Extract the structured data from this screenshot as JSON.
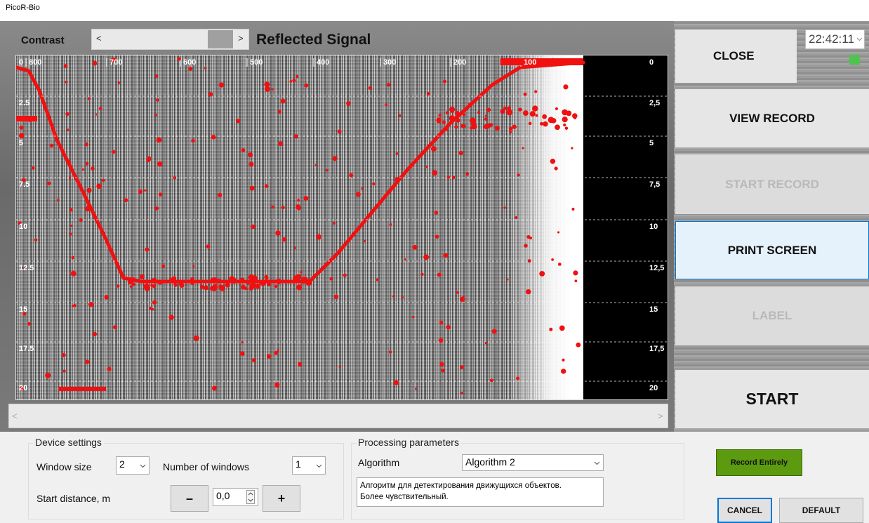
{
  "window_title": "PicoR-Bio",
  "toolbar": {
    "contrast": "Contrast",
    "scroll_left": "<",
    "scroll_right": ">",
    "title": "Reflected Signal"
  },
  "radargram": {
    "top_labels": [
      "0",
      "800",
      "700",
      "600",
      "500",
      "400",
      "300",
      "200",
      "100"
    ],
    "left_labels": [
      "2.5",
      "5",
      "7.5",
      "10",
      "12.5",
      "15",
      "17.5",
      "20"
    ],
    "right_labels": [
      "0",
      "2,5",
      "5",
      "7,5",
      "10",
      "12,5",
      "15",
      "17,5",
      "20"
    ]
  },
  "scrollbar": {
    "left": "<",
    "right": ">"
  },
  "side": {
    "time": "22:42:11",
    "close": "CLOSE",
    "view_record": "VIEW RECORD",
    "start_record": "START RECORD",
    "print_screen": "PRINT SCREEN",
    "label": "LABEL",
    "start": "START"
  },
  "device_settings": {
    "title": "Device settings",
    "window_size_label": "Window size",
    "window_size": "2",
    "windows_label": "Number of windows",
    "windows": "1",
    "start_distance_label": "Start distance, m",
    "minus": "–",
    "start_distance": "0,0",
    "plus": "+"
  },
  "processing": {
    "title": "Processing parameters",
    "algorithm_label": "Algorithm",
    "algorithm": "Algorithm 2",
    "description": [
      "Алгоритм для детектирования движущихся объектов.",
      "Более чувствительный."
    ]
  },
  "actions": {
    "record_entirely": "Record Entirely",
    "cancel": "CANCEL",
    "default": "DEFAULT"
  }
}
